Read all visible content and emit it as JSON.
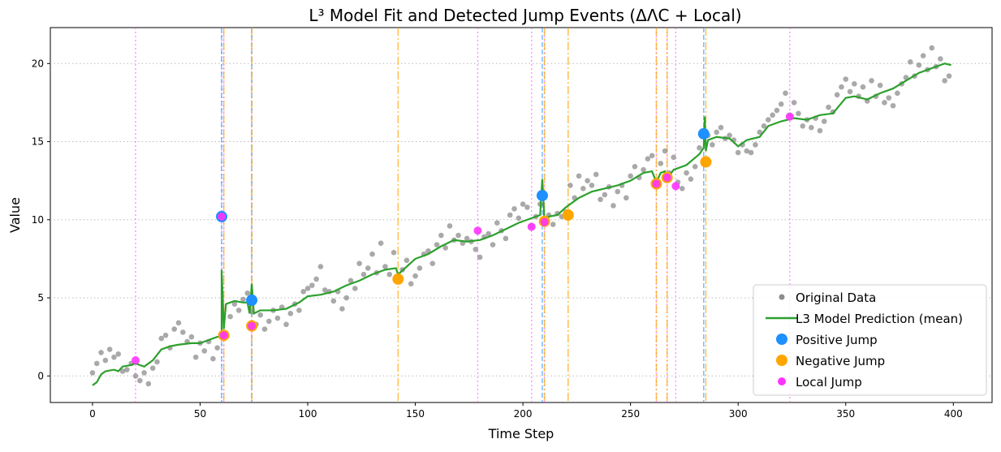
{
  "chart_data": {
    "type": "line",
    "title": "L³ Model Fit and Detected Jump Events (ΔΛC + Local)",
    "xlabel": "Time Step",
    "ylabel": "Value",
    "xlim": [
      -19.6,
      418
    ],
    "ylim": [
      -1.7,
      22.3
    ],
    "xticks": [
      0,
      50,
      100,
      150,
      200,
      250,
      300,
      350,
      400
    ],
    "yticks": [
      0,
      5,
      10,
      15,
      20
    ],
    "grid": "y-dotted",
    "legend_position": "lower-right",
    "legend": [
      "Original Data",
      "L3 Model Prediction (mean)",
      "Positive Jump",
      "Negative Jump",
      "Local Jump"
    ],
    "colors": {
      "data": "#8c8c8c",
      "model": "#2ca02c",
      "positive": "#1e90ff",
      "negative": "#ffa500",
      "local": "#ff33ff"
    },
    "original_data_step": 2,
    "original_data": [
      0.2,
      0.8,
      1.5,
      1.0,
      1.7,
      1.2,
      1.4,
      0.3,
      0.4,
      0.8,
      0.0,
      -0.3,
      0.2,
      -0.5,
      0.5,
      0.9,
      2.4,
      2.6,
      1.8,
      3.0,
      3.4,
      2.8,
      2.2,
      2.5,
      1.2,
      2.1,
      1.6,
      2.2,
      1.1,
      1.8,
      2.5,
      2.6,
      3.8,
      4.6,
      4.2,
      4.9,
      5.3,
      4.1,
      3.3,
      3.9,
      3.0,
      3.5,
      4.2,
      3.7,
      4.4,
      3.3,
      4.0,
      4.6,
      4.2,
      5.4,
      5.6,
      5.8,
      6.2,
      7.0,
      5.5,
      5.4,
      4.8,
      5.4,
      4.3,
      5.0,
      6.1,
      5.6,
      7.2,
      6.5,
      6.9,
      7.8,
      6.6,
      8.5,
      7.0,
      6.5,
      7.9,
      6.3,
      6.8,
      7.4,
      5.9,
      6.4,
      6.9,
      7.8,
      8.0,
      7.2,
      8.4,
      9.0,
      8.2,
      9.6,
      8.7,
      9.0,
      8.5,
      8.8,
      8.6,
      8.1,
      7.6,
      8.9,
      9.1,
      8.4,
      9.8,
      9.3,
      8.8,
      10.3,
      10.7,
      10.1,
      11.0,
      10.8,
      9.6,
      10.2,
      11.0,
      9.9,
      10.3,
      9.7,
      10.4,
      10.2,
      10.5,
      12.2,
      11.4,
      12.8,
      12.0,
      12.5,
      12.2,
      12.9,
      11.3,
      11.6,
      12.1,
      10.9,
      11.8,
      12.2,
      11.4,
      12.8,
      13.4,
      12.7,
      13.2,
      13.9,
      14.1,
      12.5,
      13.6,
      14.4,
      13.0,
      14.0,
      12.4,
      12.0,
      13.0,
      12.6,
      13.4,
      14.6,
      15.5,
      15.4,
      14.8,
      15.6,
      15.9,
      15.2,
      15.4,
      15.1,
      14.3,
      14.8,
      14.4,
      14.3,
      14.8,
      15.6,
      16.0,
      16.4,
      16.7,
      17.0,
      17.4,
      18.1,
      16.7,
      17.5,
      16.8,
      16.0,
      16.4,
      15.9,
      16.5,
      15.7,
      16.3,
      17.2,
      16.9,
      18.0,
      18.5,
      19.0,
      18.2,
      18.7,
      17.9,
      18.5,
      17.6,
      18.9,
      17.9,
      18.6,
      17.5,
      17.8,
      17.3,
      18.1,
      18.7,
      19.1,
      20.1,
      19.2,
      19.9,
      20.5,
      19.6,
      21.0,
      19.8,
      20.3,
      18.9,
      19.2
    ],
    "model_prediction": [
      [
        0,
        -0.6
      ],
      [
        2,
        -0.4
      ],
      [
        4,
        0.1
      ],
      [
        6,
        0.3
      ],
      [
        10,
        0.4
      ],
      [
        12,
        0.3
      ],
      [
        14,
        0.6
      ],
      [
        18,
        0.7
      ],
      [
        20,
        0.8
      ],
      [
        24,
        0.6
      ],
      [
        28,
        1.0
      ],
      [
        32,
        1.7
      ],
      [
        36,
        1.9
      ],
      [
        40,
        2.0
      ],
      [
        46,
        2.1
      ],
      [
        50,
        2.1
      ],
      [
        54,
        2.3
      ],
      [
        58,
        2.5
      ],
      [
        60,
        2.5
      ],
      [
        60,
        6.8
      ],
      [
        61,
        3.0
      ],
      [
        62,
        4.6
      ],
      [
        66,
        4.8
      ],
      [
        70,
        4.7
      ],
      [
        72,
        4.7
      ],
      [
        73,
        4.0
      ],
      [
        74,
        5.9
      ],
      [
        75,
        4.0
      ],
      [
        78,
        4.2
      ],
      [
        84,
        4.2
      ],
      [
        90,
        4.3
      ],
      [
        96,
        4.7
      ],
      [
        100,
        5.1
      ],
      [
        106,
        5.2
      ],
      [
        112,
        5.4
      ],
      [
        118,
        5.8
      ],
      [
        124,
        6.1
      ],
      [
        130,
        6.5
      ],
      [
        136,
        6.8
      ],
      [
        141,
        6.9
      ],
      [
        142,
        6.5
      ],
      [
        146,
        7.0
      ],
      [
        150,
        7.5
      ],
      [
        156,
        7.8
      ],
      [
        162,
        8.3
      ],
      [
        168,
        8.7
      ],
      [
        174,
        8.6
      ],
      [
        180,
        8.7
      ],
      [
        186,
        9.0
      ],
      [
        192,
        9.4
      ],
      [
        198,
        9.8
      ],
      [
        204,
        10.1
      ],
      [
        208,
        10.3
      ],
      [
        209,
        12.6
      ],
      [
        210,
        9.9
      ],
      [
        212,
        10.2
      ],
      [
        216,
        10.3
      ],
      [
        220,
        10.8
      ],
      [
        226,
        11.4
      ],
      [
        232,
        11.8
      ],
      [
        238,
        12.0
      ],
      [
        244,
        12.2
      ],
      [
        250,
        12.5
      ],
      [
        256,
        13.0
      ],
      [
        260,
        13.1
      ],
      [
        262,
        12.4
      ],
      [
        264,
        13.0
      ],
      [
        266,
        13.1
      ],
      [
        267,
        12.6
      ],
      [
        270,
        13.2
      ],
      [
        276,
        13.5
      ],
      [
        282,
        14.2
      ],
      [
        284,
        14.6
      ],
      [
        284.5,
        16.6
      ],
      [
        285,
        14.4
      ],
      [
        286,
        15.1
      ],
      [
        290,
        15.3
      ],
      [
        296,
        15.2
      ],
      [
        300,
        14.7
      ],
      [
        304,
        15.1
      ],
      [
        310,
        15.3
      ],
      [
        314,
        16.0
      ],
      [
        320,
        16.3
      ],
      [
        326,
        16.5
      ],
      [
        332,
        16.4
      ],
      [
        338,
        16.7
      ],
      [
        344,
        16.8
      ],
      [
        350,
        17.8
      ],
      [
        354,
        17.9
      ],
      [
        360,
        17.7
      ],
      [
        366,
        18.1
      ],
      [
        372,
        18.4
      ],
      [
        378,
        18.9
      ],
      [
        384,
        19.4
      ],
      [
        390,
        19.7
      ],
      [
        396,
        20.0
      ],
      [
        399,
        19.9
      ]
    ],
    "positive_jumps": [
      [
        60,
        10.2
      ],
      [
        74,
        4.85
      ],
      [
        209,
        11.55
      ],
      [
        284,
        15.5
      ]
    ],
    "negative_jumps": [
      [
        61,
        2.6
      ],
      [
        74,
        3.2
      ],
      [
        142,
        6.2
      ],
      [
        210,
        9.9
      ],
      [
        221,
        10.3
      ],
      [
        262,
        12.3
      ],
      [
        267,
        12.7
      ],
      [
        285,
        13.7
      ]
    ],
    "local_jumps": [
      [
        20,
        1.0
      ],
      [
        60,
        10.2
      ],
      [
        61,
        2.6
      ],
      [
        74,
        3.2
      ],
      [
        179,
        9.3
      ],
      [
        204,
        9.55
      ],
      [
        210,
        9.85
      ],
      [
        262,
        12.3
      ],
      [
        267,
        12.7
      ],
      [
        271,
        12.15
      ],
      [
        324,
        16.6
      ]
    ]
  }
}
